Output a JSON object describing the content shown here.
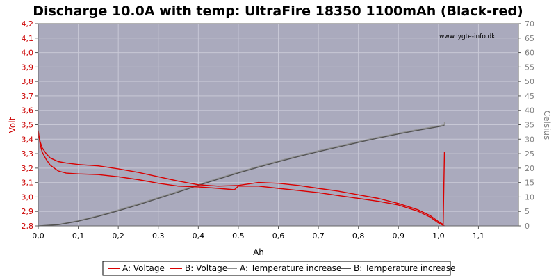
{
  "chart_data": {
    "type": "line",
    "title": "Discharge 10.0A with temp: UltraFire 18350 1100mAh (Black-red)",
    "watermark": "www.lygte-info.dk",
    "xlabel": "Ah",
    "ylabel_left": "Volt",
    "ylabel_right": "Celsius",
    "xlim": [
      0,
      1.2
    ],
    "ylim_left": [
      2.8,
      4.2
    ],
    "ylim_right": [
      0,
      70
    ],
    "x_ticks": [
      "0,0",
      "0,1",
      "0,2",
      "0,3",
      "0,4",
      "0,5",
      "0,6",
      "0,7",
      "0,8",
      "0,9",
      "1,0",
      "1,1"
    ],
    "y_left_ticks": [
      "2,8",
      "2,9",
      "3,0",
      "3,1",
      "3,2",
      "3,3",
      "3,4",
      "3,5",
      "3,6",
      "3,7",
      "3,8",
      "3,9",
      "4,0",
      "4,1",
      "4,2"
    ],
    "y_right_ticks": [
      "0",
      "5",
      "10",
      "15",
      "20",
      "25",
      "30",
      "35",
      "40",
      "45",
      "50",
      "55",
      "60",
      "65",
      "70"
    ],
    "grid": true,
    "legend_position": "bottom",
    "colors": {
      "plot_bg": "#aaaabd",
      "grid": "#c8c8d6",
      "voltage": "#d90000",
      "temperature_a": "#909090",
      "temperature_b": "#505050",
      "left_axis_text": "#cc0000",
      "right_axis_text": "#808080"
    },
    "series": [
      {
        "name": "A: Voltage",
        "axis": "left",
        "color": "#d90000",
        "x": [
          0,
          0.005,
          0.01,
          0.02,
          0.03,
          0.05,
          0.07,
          0.1,
          0.15,
          0.2,
          0.25,
          0.3,
          0.35,
          0.4,
          0.45,
          0.5,
          0.55,
          0.6,
          0.65,
          0.7,
          0.75,
          0.8,
          0.85,
          0.9,
          0.95,
          0.98,
          1.0,
          1.012,
          1.015
        ],
        "y": [
          3.44,
          3.38,
          3.34,
          3.3,
          3.27,
          3.245,
          3.235,
          3.225,
          3.215,
          3.195,
          3.17,
          3.14,
          3.11,
          3.085,
          3.075,
          3.08,
          3.1,
          3.095,
          3.08,
          3.06,
          3.04,
          3.015,
          2.99,
          2.955,
          2.91,
          2.87,
          2.83,
          2.81,
          3.31
        ]
      },
      {
        "name": "B: Voltage",
        "axis": "left",
        "color": "#d90000",
        "x": [
          0,
          0.005,
          0.01,
          0.02,
          0.03,
          0.05,
          0.07,
          0.1,
          0.15,
          0.2,
          0.25,
          0.3,
          0.35,
          0.4,
          0.45,
          0.49,
          0.5,
          0.55,
          0.6,
          0.65,
          0.7,
          0.75,
          0.8,
          0.85,
          0.9,
          0.95,
          0.98,
          1.0,
          1.015
        ],
        "y": [
          3.46,
          3.36,
          3.31,
          3.26,
          3.22,
          3.18,
          3.165,
          3.16,
          3.155,
          3.14,
          3.12,
          3.095,
          3.075,
          3.07,
          3.06,
          3.05,
          3.075,
          3.075,
          3.06,
          3.045,
          3.03,
          3.01,
          2.99,
          2.97,
          2.945,
          2.9,
          2.86,
          2.82,
          2.8
        ]
      },
      {
        "name": "A: Temperature increase",
        "axis": "right",
        "color": "#909090",
        "x": [
          0,
          0.05,
          0.1,
          0.15,
          0.2,
          0.25,
          0.3,
          0.35,
          0.4,
          0.45,
          0.5,
          0.55,
          0.6,
          0.65,
          0.7,
          0.75,
          0.8,
          0.85,
          0.9,
          0.95,
          1.0,
          1.015,
          1.015
        ],
        "y": [
          0,
          0.5,
          1.8,
          3.5,
          5.5,
          7.6,
          9.8,
          12,
          14.3,
          16.5,
          18.6,
          20.6,
          22.5,
          24.3,
          26,
          27.6,
          29.2,
          30.7,
          32.1,
          33.4,
          34.6,
          35,
          36
        ]
      },
      {
        "name": "B: Temperature increase",
        "axis": "right",
        "color": "#505050",
        "x": [
          0,
          0.05,
          0.1,
          0.15,
          0.2,
          0.25,
          0.3,
          0.35,
          0.4,
          0.45,
          0.5,
          0.55,
          0.6,
          0.65,
          0.7,
          0.75,
          0.8,
          0.85,
          0.9,
          0.95,
          1.0,
          1.015
        ],
        "y": [
          0,
          0.4,
          1.6,
          3.3,
          5.2,
          7.3,
          9.5,
          11.7,
          14,
          16.2,
          18.3,
          20.3,
          22.2,
          24,
          25.7,
          27.3,
          28.9,
          30.4,
          31.8,
          33.1,
          34.3,
          34.7
        ]
      }
    ]
  }
}
